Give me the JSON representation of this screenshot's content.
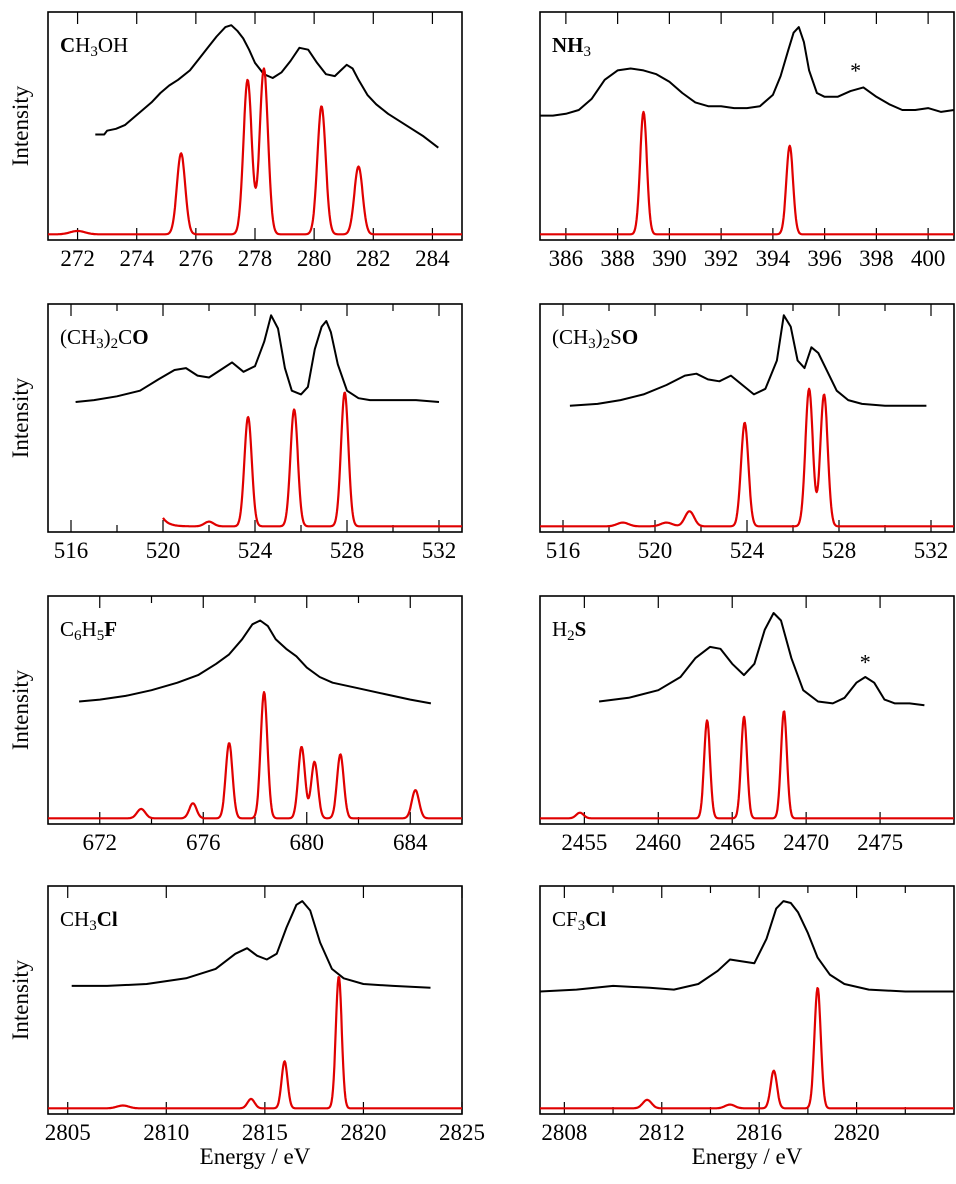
{
  "chart_data": [
    {
      "type": "line",
      "molecule": {
        "parts": [
          {
            "t": "C",
            "b": true
          },
          {
            "t": "H"
          },
          {
            "t": "3",
            "sub": true
          },
          {
            "t": "OH"
          }
        ]
      },
      "xlim": [
        271,
        285
      ],
      "ticks": {
        "major": [
          272,
          274,
          276,
          278,
          280,
          282,
          284
        ],
        "major_labels": [
          "272",
          "274",
          "276",
          "278",
          "280",
          "282",
          "284"
        ]
      },
      "ylabel": "Intensity",
      "xlabel": "",
      "experiment": {
        "x": [
          272.6,
          272.9,
          273.0,
          273.3,
          273.6,
          273.9,
          274.2,
          274.5,
          274.8,
          275.1,
          275.4,
          275.8,
          276.1,
          276.4,
          276.7,
          277.0,
          277.2,
          277.4,
          277.6,
          277.8,
          278.0,
          278.3,
          278.6,
          278.9,
          279.2,
          279.5,
          279.8,
          280.1,
          280.4,
          280.7,
          280.9,
          281.1,
          281.3,
          281.5,
          281.8,
          282.1,
          282.5,
          282.9,
          283.3,
          283.7,
          284.2
        ],
        "y": [
          0.53,
          0.53,
          0.55,
          0.56,
          0.58,
          0.62,
          0.66,
          0.7,
          0.75,
          0.79,
          0.82,
          0.87,
          0.93,
          0.99,
          1.05,
          1.1,
          1.11,
          1.08,
          1.04,
          0.98,
          0.91,
          0.85,
          0.83,
          0.86,
          0.92,
          0.99,
          0.98,
          0.91,
          0.85,
          0.84,
          0.87,
          0.9,
          0.88,
          0.82,
          0.74,
          0.69,
          0.64,
          0.6,
          0.56,
          0.52,
          0.46
        ]
      },
      "calculation": {
        "baseline": 0.0,
        "x_from": 271.0,
        "x_to": 285.0,
        "peaks": [
          {
            "x": 272.0,
            "h": 0.018,
            "w": 0.25
          },
          {
            "x": 275.5,
            "h": 0.43,
            "w": 0.14
          },
          {
            "x": 277.75,
            "h": 0.82,
            "w": 0.14
          },
          {
            "x": 278.3,
            "h": 0.88,
            "w": 0.14
          },
          {
            "x": 280.25,
            "h": 0.68,
            "w": 0.14
          },
          {
            "x": 281.5,
            "h": 0.36,
            "w": 0.14
          }
        ]
      },
      "annotations": []
    },
    {
      "type": "line",
      "molecule": {
        "parts": [
          {
            "t": "NH",
            "b": true
          },
          {
            "t": "3",
            "sub": true
          }
        ]
      },
      "xlim": [
        385,
        401
      ],
      "ticks": {
        "major": [
          386,
          388,
          390,
          392,
          394,
          396,
          398,
          400
        ],
        "major_labels": [
          "386",
          "388",
          "390",
          "392",
          "394",
          "396",
          "398",
          "400"
        ]
      },
      "ylabel": "",
      "xlabel": "",
      "experiment": {
        "x": [
          385.0,
          385.5,
          386.0,
          386.5,
          387.0,
          387.5,
          388.0,
          388.5,
          389.0,
          389.5,
          390.0,
          390.5,
          391.0,
          391.5,
          392.0,
          392.5,
          393.0,
          393.5,
          394.0,
          394.3,
          394.6,
          394.8,
          395.0,
          395.2,
          395.4,
          395.7,
          396.0,
          396.5,
          397.0,
          397.5,
          398.0,
          398.5,
          399.0,
          399.5,
          400.0,
          400.5,
          401.0
        ],
        "y": [
          0.63,
          0.63,
          0.64,
          0.66,
          0.72,
          0.82,
          0.87,
          0.88,
          0.87,
          0.85,
          0.81,
          0.75,
          0.7,
          0.68,
          0.68,
          0.67,
          0.67,
          0.68,
          0.74,
          0.84,
          0.98,
          1.07,
          1.1,
          1.02,
          0.87,
          0.75,
          0.73,
          0.73,
          0.76,
          0.78,
          0.73,
          0.69,
          0.66,
          0.66,
          0.67,
          0.65,
          0.66
        ]
      },
      "calculation": {
        "baseline": 0.0,
        "x_from": 385.0,
        "x_to": 401.0,
        "peaks": [
          {
            "x": 389.0,
            "h": 0.65,
            "w": 0.13
          },
          {
            "x": 394.65,
            "h": 0.47,
            "w": 0.13
          }
        ]
      },
      "annotations": [
        {
          "text": "*",
          "x": 397.2,
          "y": 0.83
        }
      ]
    },
    {
      "type": "line",
      "molecule": {
        "parts": [
          {
            "t": "(CH"
          },
          {
            "t": "3",
            "sub": true
          },
          {
            "t": ")"
          },
          {
            "t": "2",
            "sub": true
          },
          {
            "t": "C"
          },
          {
            "t": "O",
            "b": true
          }
        ]
      },
      "xlim": [
        515,
        533
      ],
      "ticks": {
        "major": [
          516,
          520,
          524,
          528,
          532
        ],
        "major_labels": [
          "516",
          "520",
          "524",
          "528",
          "532"
        ],
        "minor": [
          518,
          522,
          526,
          530
        ]
      },
      "ylabel": "Intensity",
      "xlabel": "",
      "experiment": {
        "x": [
          516.2,
          517.0,
          518.0,
          519.0,
          519.8,
          520.5,
          521.0,
          521.5,
          522.0,
          522.5,
          523.0,
          523.5,
          524.0,
          524.4,
          524.7,
          525.0,
          525.3,
          525.6,
          526.0,
          526.3,
          526.6,
          526.9,
          527.1,
          527.3,
          527.6,
          528.0,
          528.5,
          529.0,
          530.0,
          531.0,
          532.0
        ],
        "y": [
          0.66,
          0.67,
          0.69,
          0.72,
          0.78,
          0.83,
          0.84,
          0.8,
          0.79,
          0.83,
          0.87,
          0.82,
          0.85,
          0.98,
          1.12,
          1.05,
          0.84,
          0.72,
          0.7,
          0.74,
          0.94,
          1.06,
          1.09,
          1.03,
          0.86,
          0.72,
          0.68,
          0.67,
          0.67,
          0.67,
          0.66
        ]
      },
      "calculation": {
        "baseline": 0.0,
        "x_from": 520.0,
        "x_to": 533.0,
        "peaks": [
          {
            "x": 522.0,
            "h": 0.025,
            "w": 0.2
          },
          {
            "x": 523.7,
            "h": 0.58,
            "w": 0.16
          },
          {
            "x": 525.7,
            "h": 0.62,
            "w": 0.16
          },
          {
            "x": 527.9,
            "h": 0.71,
            "w": 0.16
          }
        ],
        "start_bump": 0.045
      },
      "annotations": []
    },
    {
      "type": "line",
      "molecule": {
        "parts": [
          {
            "t": "(CH"
          },
          {
            "t": "3",
            "sub": true
          },
          {
            "t": ")"
          },
          {
            "t": "2",
            "sub": true
          },
          {
            "t": "S"
          },
          {
            "t": "O",
            "b": true
          }
        ]
      },
      "xlim": [
        515,
        533
      ],
      "ticks": {
        "major": [
          516,
          520,
          524,
          528,
          532
        ],
        "major_labels": [
          "516",
          "520",
          "524",
          "528",
          "532"
        ],
        "minor": [
          518,
          522,
          526,
          530
        ]
      },
      "ylabel": "",
      "xlabel": "",
      "experiment": {
        "x": [
          516.3,
          517.5,
          518.5,
          519.5,
          520.5,
          521.3,
          521.8,
          522.3,
          522.8,
          523.3,
          523.8,
          524.3,
          524.8,
          525.3,
          525.6,
          525.9,
          526.2,
          526.5,
          526.8,
          527.1,
          527.5,
          527.9,
          528.4,
          529.0,
          530.0,
          531.8
        ],
        "y": [
          0.64,
          0.65,
          0.67,
          0.7,
          0.75,
          0.8,
          0.81,
          0.78,
          0.77,
          0.8,
          0.75,
          0.7,
          0.73,
          0.88,
          1.12,
          1.06,
          0.88,
          0.84,
          0.95,
          0.92,
          0.82,
          0.72,
          0.67,
          0.65,
          0.64,
          0.64
        ]
      },
      "calculation": {
        "baseline": 0.0,
        "x_from": 515.0,
        "x_to": 533.0,
        "peaks": [
          {
            "x": 518.6,
            "h": 0.02,
            "w": 0.25
          },
          {
            "x": 520.5,
            "h": 0.02,
            "w": 0.25
          },
          {
            "x": 521.5,
            "h": 0.08,
            "w": 0.2
          },
          {
            "x": 523.9,
            "h": 0.55,
            "w": 0.16
          },
          {
            "x": 526.7,
            "h": 0.73,
            "w": 0.16
          },
          {
            "x": 527.35,
            "h": 0.7,
            "w": 0.16
          }
        ]
      },
      "annotations": []
    },
    {
      "type": "line",
      "molecule": {
        "parts": [
          {
            "t": "C"
          },
          {
            "t": "6",
            "sub": true
          },
          {
            "t": "H"
          },
          {
            "t": "5",
            "sub": true
          },
          {
            "t": "F",
            "b": true
          }
        ]
      },
      "xlim": [
        670,
        686
      ],
      "ticks": {
        "major": [
          672,
          676,
          680,
          684
        ],
        "major_labels": [
          "672",
          "676",
          "680",
          "684"
        ],
        "minor": [
          674,
          678,
          682
        ]
      },
      "ylabel": "Intensity",
      "xlabel": "",
      "experiment": {
        "x": [
          671.2,
          672.0,
          673.0,
          674.0,
          675.0,
          675.8,
          676.5,
          677.0,
          677.5,
          677.9,
          678.2,
          678.5,
          678.8,
          679.2,
          679.6,
          680.0,
          680.5,
          681.0,
          682.0,
          683.0,
          684.0,
          684.8
        ],
        "y": [
          0.62,
          0.63,
          0.65,
          0.68,
          0.72,
          0.76,
          0.82,
          0.87,
          0.95,
          1.03,
          1.05,
          1.02,
          0.95,
          0.9,
          0.86,
          0.8,
          0.75,
          0.72,
          0.69,
          0.66,
          0.63,
          0.61
        ]
      },
      "calculation": {
        "baseline": 0.0,
        "x_from": 670.0,
        "x_to": 686.0,
        "peaks": [
          {
            "x": 673.6,
            "h": 0.05,
            "w": 0.16
          },
          {
            "x": 675.6,
            "h": 0.08,
            "w": 0.14
          },
          {
            "x": 677.0,
            "h": 0.4,
            "w": 0.13
          },
          {
            "x": 678.35,
            "h": 0.67,
            "w": 0.13
          },
          {
            "x": 679.8,
            "h": 0.38,
            "w": 0.13
          },
          {
            "x": 680.3,
            "h": 0.3,
            "w": 0.13
          },
          {
            "x": 681.3,
            "h": 0.34,
            "w": 0.13
          },
          {
            "x": 684.2,
            "h": 0.15,
            "w": 0.14
          }
        ]
      },
      "annotations": []
    },
    {
      "type": "line",
      "molecule": {
        "parts": [
          {
            "t": "H"
          },
          {
            "t": "2",
            "sub": true
          },
          {
            "t": "S",
            "b": true
          }
        ]
      },
      "xlim": [
        2452,
        2480
      ],
      "ticks": {
        "major": [
          2455,
          2460,
          2465,
          2470,
          2475
        ],
        "major_labels": [
          "2455",
          "2460",
          "2465",
          "2470",
          "2475"
        ]
      },
      "ylabel": "",
      "xlabel": "",
      "experiment": {
        "x": [
          2456.0,
          2458.0,
          2460.0,
          2461.5,
          2462.5,
          2463.5,
          2464.2,
          2465.0,
          2465.8,
          2466.5,
          2467.2,
          2467.8,
          2468.3,
          2469.0,
          2469.8,
          2470.8,
          2471.8,
          2472.6,
          2473.4,
          2474.0,
          2474.6,
          2475.3,
          2476.0,
          2477.0,
          2478.0
        ],
        "y": [
          0.62,
          0.64,
          0.68,
          0.75,
          0.85,
          0.91,
          0.9,
          0.82,
          0.76,
          0.82,
          1.0,
          1.09,
          1.05,
          0.85,
          0.68,
          0.62,
          0.61,
          0.64,
          0.72,
          0.75,
          0.72,
          0.63,
          0.61,
          0.61,
          0.6
        ]
      },
      "calculation": {
        "baseline": 0.0,
        "x_from": 2452.0,
        "x_to": 2480.0,
        "peaks": [
          {
            "x": 2454.7,
            "h": 0.03,
            "w": 0.25
          },
          {
            "x": 2463.3,
            "h": 0.52,
            "w": 0.2
          },
          {
            "x": 2465.8,
            "h": 0.54,
            "w": 0.2
          },
          {
            "x": 2468.5,
            "h": 0.57,
            "w": 0.2
          }
        ]
      },
      "annotations": [
        {
          "text": "*",
          "x": 2474.0,
          "y": 0.79
        }
      ]
    },
    {
      "type": "line",
      "molecule": {
        "parts": [
          {
            "t": "CH"
          },
          {
            "t": "3",
            "sub": true
          },
          {
            "t": "Cl",
            "b": true
          }
        ]
      },
      "xlim": [
        2804,
        2825
      ],
      "ticks": {
        "major": [
          2805,
          2810,
          2815,
          2820,
          2825
        ],
        "major_labels": [
          "2805",
          "2810",
          "2815",
          "2820",
          "2825"
        ]
      },
      "ylabel": "Intensity",
      "xlabel": "Energy / eV",
      "experiment": {
        "x": [
          2805.2,
          2807.0,
          2809.0,
          2811.0,
          2812.5,
          2813.5,
          2814.1,
          2814.6,
          2815.1,
          2815.6,
          2816.1,
          2816.6,
          2816.9,
          2817.3,
          2817.8,
          2818.4,
          2819.0,
          2820.0,
          2821.5,
          2823.4
        ],
        "y": [
          0.65,
          0.65,
          0.66,
          0.69,
          0.74,
          0.82,
          0.85,
          0.81,
          0.79,
          0.82,
          0.96,
          1.08,
          1.1,
          1.05,
          0.88,
          0.74,
          0.69,
          0.66,
          0.65,
          0.64
        ]
      },
      "calculation": {
        "baseline": 0.0,
        "x_from": 2804.0,
        "x_to": 2825.0,
        "peaks": [
          {
            "x": 2807.8,
            "h": 0.015,
            "w": 0.3
          },
          {
            "x": 2814.3,
            "h": 0.05,
            "w": 0.18
          },
          {
            "x": 2816.0,
            "h": 0.25,
            "w": 0.15
          },
          {
            "x": 2818.75,
            "h": 0.7,
            "w": 0.15
          }
        ]
      },
      "annotations": []
    },
    {
      "type": "line",
      "molecule": {
        "parts": [
          {
            "t": "CF"
          },
          {
            "t": "3",
            "sub": true
          },
          {
            "t": "Cl",
            "b": true
          }
        ]
      },
      "xlim": [
        2807,
        2824
      ],
      "ticks": {
        "major": [
          2808,
          2812,
          2816,
          2820
        ],
        "major_labels": [
          "2808",
          "2812",
          "2816",
          "2820"
        ],
        "minor": [
          2810,
          2814,
          2818,
          2822
        ]
      },
      "ylabel": "",
      "xlabel": "Energy / eV",
      "experiment": {
        "x": [
          2807.0,
          2808.5,
          2810.0,
          2811.5,
          2812.5,
          2813.5,
          2814.3,
          2814.8,
          2815.3,
          2815.8,
          2816.3,
          2816.7,
          2817.0,
          2817.3,
          2817.6,
          2818.0,
          2818.4,
          2818.9,
          2819.5,
          2820.5,
          2822.0,
          2824.0
        ],
        "y": [
          0.62,
          0.63,
          0.65,
          0.64,
          0.63,
          0.66,
          0.73,
          0.79,
          0.78,
          0.77,
          0.9,
          1.06,
          1.1,
          1.09,
          1.04,
          0.93,
          0.8,
          0.71,
          0.66,
          0.63,
          0.62,
          0.62
        ]
      },
      "calculation": {
        "baseline": 0.0,
        "x_from": 2807.0,
        "x_to": 2824.0,
        "peaks": [
          {
            "x": 2811.4,
            "h": 0.045,
            "w": 0.18
          },
          {
            "x": 2814.8,
            "h": 0.02,
            "w": 0.2
          },
          {
            "x": 2816.6,
            "h": 0.2,
            "w": 0.13
          },
          {
            "x": 2818.4,
            "h": 0.64,
            "w": 0.13
          }
        ]
      },
      "annotations": []
    }
  ]
}
